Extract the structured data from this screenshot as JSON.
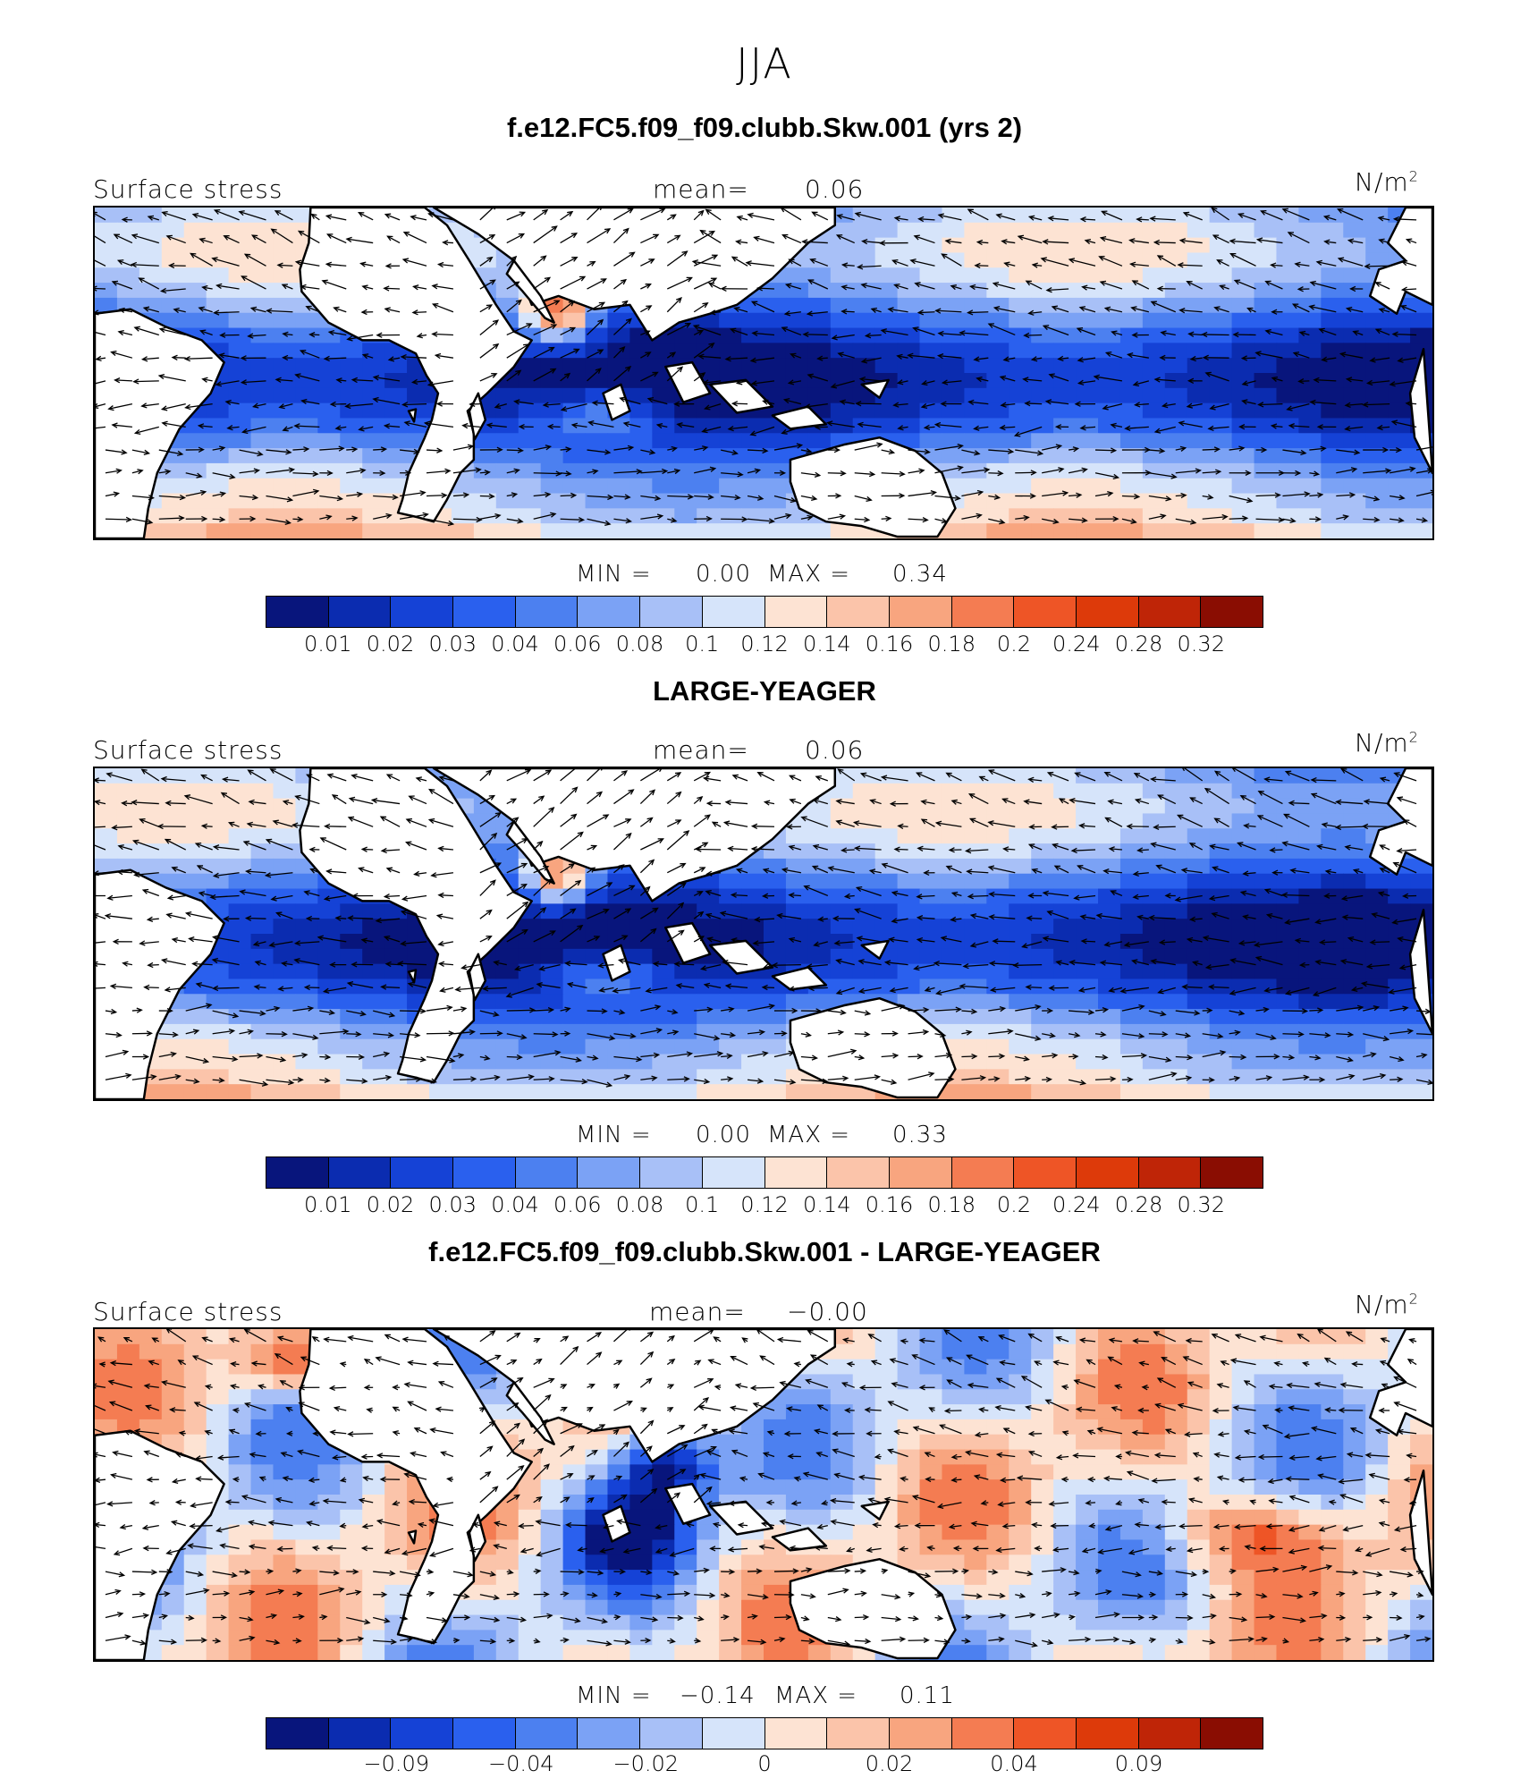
{
  "figure": {
    "season_title": "JJA",
    "colors": {
      "scale": [
        "#08157c",
        "#0b2cb0",
        "#1542d6",
        "#2a60ee",
        "#4c80f0",
        "#7ba2f5",
        "#a8c0f7",
        "#d6e4fa",
        "#fde3d3",
        "#fbc4aa",
        "#f8a57f",
        "#f47c52",
        "#ee5526",
        "#dd3a0a",
        "#bf2507",
        "#8a0d02"
      ],
      "land": "#ffffff",
      "coast": "#000000",
      "arrow": "#000000"
    },
    "panels": [
      {
        "id": "model",
        "title": "f.e12.FC5.f09_f09.clubb.Skw.001 (yrs 2)",
        "variable_label": "Surface stress",
        "mean_label": "mean=",
        "mean_value": "0.06",
        "units_label": "N/m",
        "units_exp": "2",
        "min_label": "MIN =",
        "min_value": "0.00",
        "max_label": "MAX =",
        "max_value": "0.34",
        "colorbar_ticks": [
          "0.01",
          "0.02",
          "0.03",
          "0.04",
          "0.06",
          "0.08",
          "0.1",
          "0.12",
          "0.14",
          "0.16",
          "0.18",
          "0.2",
          "0.24",
          "0.28",
          "0.32"
        ],
        "field_type": "magnitude"
      },
      {
        "id": "obs",
        "title": "LARGE-YEAGER",
        "variable_label": "Surface stress",
        "mean_label": "mean=",
        "mean_value": "0.06",
        "units_label": "N/m",
        "units_exp": "2",
        "min_label": "MIN =",
        "min_value": "0.00",
        "max_label": "MAX =",
        "max_value": "0.33",
        "colorbar_ticks": [
          "0.01",
          "0.02",
          "0.03",
          "0.04",
          "0.06",
          "0.08",
          "0.1",
          "0.12",
          "0.14",
          "0.16",
          "0.18",
          "0.2",
          "0.24",
          "0.28",
          "0.32"
        ],
        "field_type": "magnitude"
      },
      {
        "id": "diff",
        "title": "f.e12.FC5.f09_f09.clubb.Skw.001 - LARGE-YEAGER",
        "variable_label": "Surface stress",
        "mean_label": "mean=",
        "mean_value": "−0.00",
        "units_label": "N/m",
        "units_exp": "2",
        "min_label": "MIN =",
        "min_value": "−0.14",
        "max_label": "MAX =",
        "max_value": "0.11",
        "colorbar_ticks": [
          "−0.09",
          "−0.04",
          "−0.02",
          "0",
          "0.02",
          "0.04",
          "0.09"
        ],
        "field_type": "difference"
      }
    ]
  }
}
